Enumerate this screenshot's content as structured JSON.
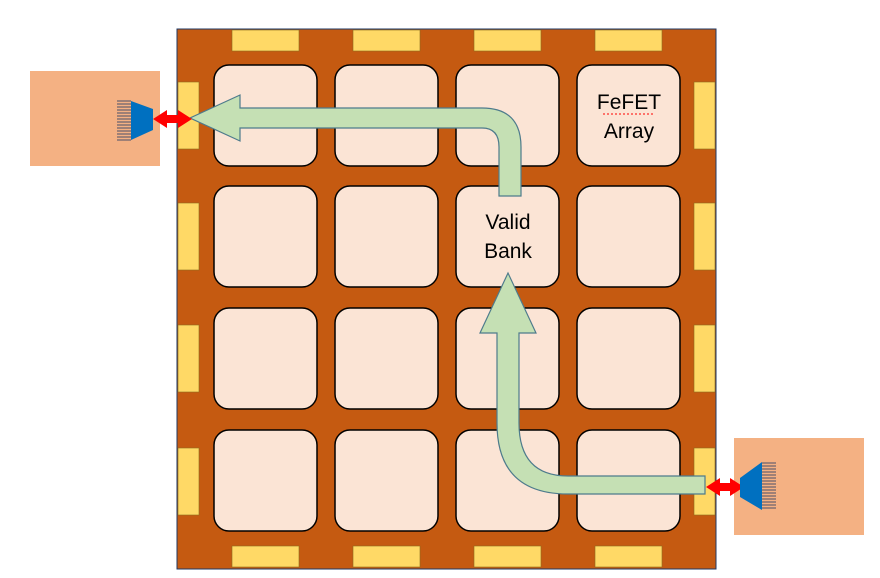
{
  "labels": {
    "array_line1": "FeFET",
    "array_line2": "Array",
    "bank_line1": "Valid",
    "bank_line2": "Bank"
  },
  "colors": {
    "die": "#c55a11",
    "cell_fill": "#fbe4d5",
    "pad": "#ffd966",
    "external_block": "#f4b183",
    "arrow_fill": "#c5e0b4",
    "arrow_stroke": "#4e7b8c",
    "io_arrow": "#ff0000",
    "connector": "#0070c0"
  },
  "grid": {
    "rows": 4,
    "cols": 4
  }
}
